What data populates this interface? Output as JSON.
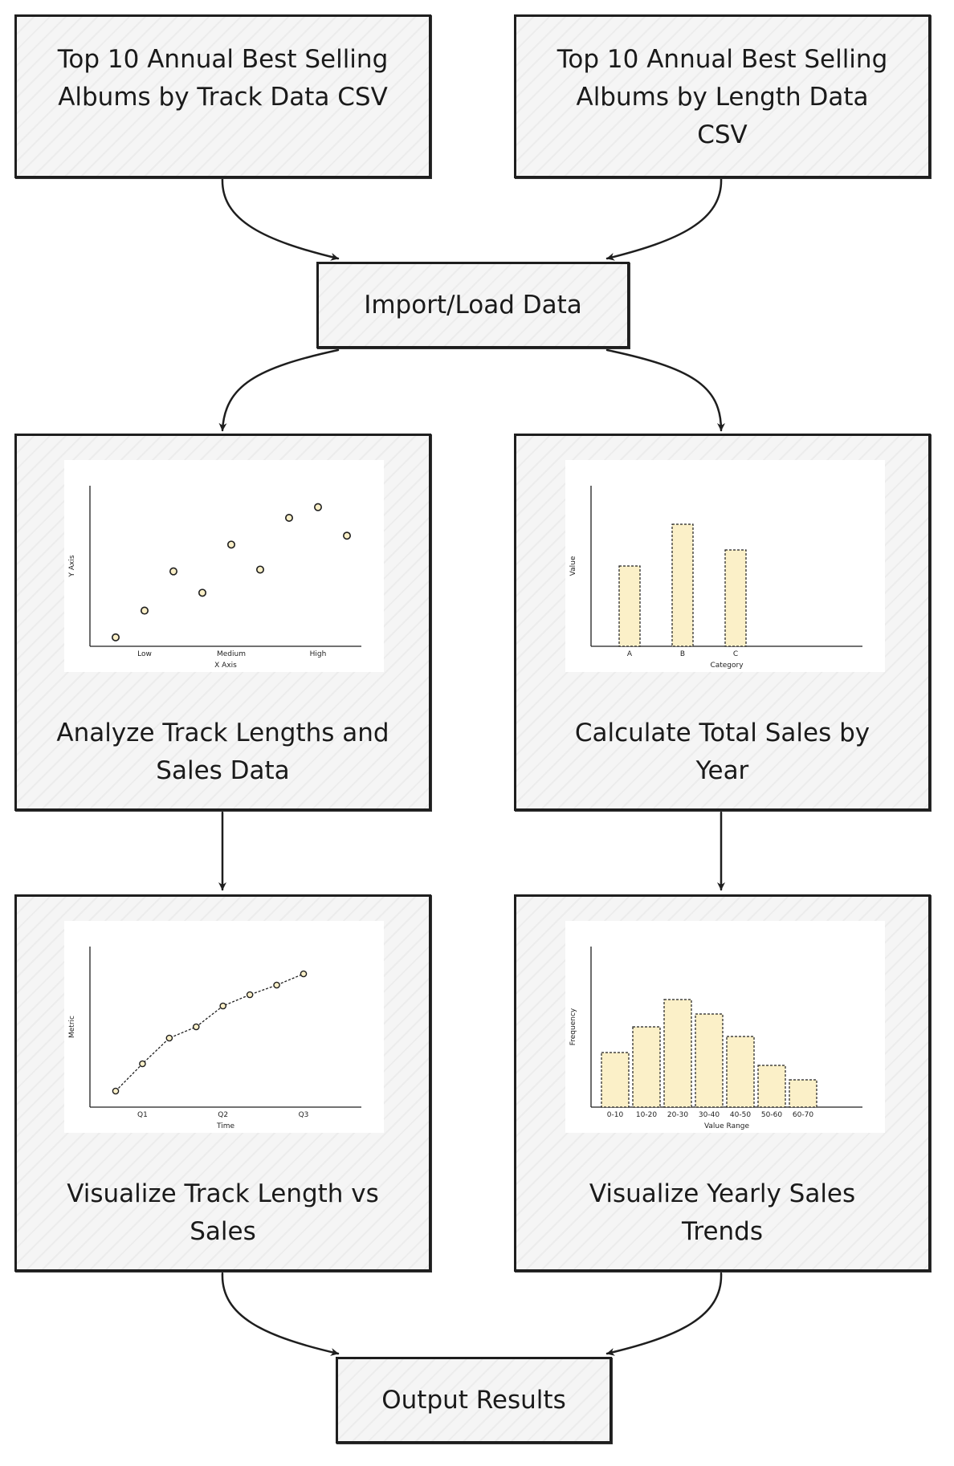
{
  "nodes": {
    "csv_track": "Top 10 Annual Best Selling Albums by Track Data CSV",
    "csv_length": "Top 10 Annual Best Selling Albums by Length Data CSV",
    "import": "Import/Load Data",
    "analyze": "Analyze Track Lengths and Sales Data",
    "calculate": "Calculate Total Sales by Year",
    "viz_track": "Visualize Track Length vs Sales",
    "viz_yearly": "Visualize Yearly Sales Trends",
    "output": "Output Results"
  },
  "colors": {
    "fill": "#fbf0c8",
    "stroke": "#1e1e1e",
    "node_bg": "#f5f5f5"
  },
  "chart_data": [
    {
      "type": "scatter",
      "xlabel": "X Axis",
      "ylabel": "Y Axis",
      "x_ticks": [
        "Low",
        "Medium",
        "High"
      ],
      "points": [
        [
          0,
          0.5
        ],
        [
          1,
          2.0
        ],
        [
          2,
          4.2
        ],
        [
          3,
          3.0
        ],
        [
          4,
          5.7
        ],
        [
          5,
          4.3
        ],
        [
          6,
          7.2
        ],
        [
          7,
          7.8
        ],
        [
          8,
          6.2
        ]
      ],
      "ylim": [
        0,
        9
      ]
    },
    {
      "type": "bar",
      "categories": [
        "A",
        "B",
        "C"
      ],
      "values": [
        50,
        76,
        60
      ],
      "xlabel": "Category",
      "ylabel": "Value",
      "ylim": [
        0,
        100
      ]
    },
    {
      "type": "line",
      "x_ticks": [
        "Q1",
        "Q2",
        "Q3"
      ],
      "values": [
        1,
        2.7,
        4.3,
        5.0,
        6.3,
        7.0,
        7.6,
        8.3
      ],
      "xlabel": "Time",
      "ylabel": "Metric",
      "ylim": [
        0,
        10
      ]
    },
    {
      "type": "bar",
      "categories": [
        "0-10",
        "10-20",
        "20-30",
        "30-40",
        "40-50",
        "50-60",
        "60-70"
      ],
      "values": [
        34,
        50,
        67,
        58,
        44,
        26,
        17
      ],
      "xlabel": "Value Range",
      "ylabel": "Frequency",
      "ylim": [
        0,
        100
      ]
    }
  ]
}
